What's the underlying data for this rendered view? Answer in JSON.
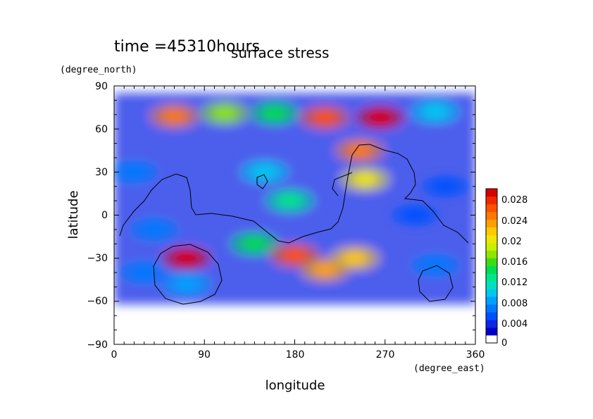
{
  "chart_data": {
    "type": "heatmap",
    "title": "surface stress",
    "time_label": "time =45310hours",
    "xlabel": "longitude",
    "ylabel": "latitude",
    "x_units": "(degree_east)",
    "y_units": "(degree_north)",
    "xlim": [
      0,
      360
    ],
    "ylim": [
      -90,
      90
    ],
    "x_ticks": [
      "0",
      "90",
      "180",
      "270",
      "360"
    ],
    "y_ticks": [
      "90",
      "60",
      "30",
      "0",
      "−30",
      "−60",
      "−90"
    ],
    "colorbar": {
      "min": 0,
      "max": 0.03,
      "tick_labels": [
        "0",
        "0.004",
        "0.008",
        "0.012",
        "0.016",
        "0.02",
        "0.024",
        "0.028"
      ],
      "colors": [
        "#ffffff",
        "#0000c8",
        "#0a28e6",
        "#0050ff",
        "#0078ff",
        "#00a0ff",
        "#00c8f0",
        "#00e0c0",
        "#00e68c",
        "#00dc50",
        "#3cdc14",
        "#8ce600",
        "#c8f000",
        "#f0e600",
        "#ffc800",
        "#ffa000",
        "#ff7800",
        "#ff5000",
        "#f02800",
        "#d70000"
      ]
    },
    "features": [
      {
        "lon": 60,
        "lat": 69,
        "value": 0.026
      },
      {
        "lon": 110,
        "lat": 71,
        "value": 0.018
      },
      {
        "lon": 160,
        "lat": 71,
        "value": 0.014
      },
      {
        "lon": 210,
        "lat": 68,
        "value": 0.027
      },
      {
        "lon": 265,
        "lat": 68,
        "value": 0.03
      },
      {
        "lon": 320,
        "lat": 72,
        "value": 0.01
      },
      {
        "lon": 245,
        "lat": 45,
        "value": 0.026
      },
      {
        "lon": 250,
        "lat": 25,
        "value": 0.02
      },
      {
        "lon": 175,
        "lat": 10,
        "value": 0.012
      },
      {
        "lon": 150,
        "lat": 30,
        "value": 0.01
      },
      {
        "lon": 140,
        "lat": -20,
        "value": 0.014
      },
      {
        "lon": 180,
        "lat": -28,
        "value": 0.027
      },
      {
        "lon": 210,
        "lat": -38,
        "value": 0.024
      },
      {
        "lon": 240,
        "lat": -30,
        "value": 0.022
      },
      {
        "lon": 72,
        "lat": -30,
        "value": 0.03
      },
      {
        "lon": 72,
        "lat": -48,
        "value": 0.008
      },
      {
        "lon": 30,
        "lat": -40,
        "value": 0.006
      },
      {
        "lon": 320,
        "lat": -35,
        "value": 0.006
      },
      {
        "lon": 20,
        "lat": 30,
        "value": 0.006
      },
      {
        "lon": 330,
        "lat": 20,
        "value": 0.005
      },
      {
        "lon": 300,
        "lat": 0,
        "value": 0.005
      },
      {
        "lon": 40,
        "lat": -10,
        "value": 0.006
      }
    ]
  }
}
